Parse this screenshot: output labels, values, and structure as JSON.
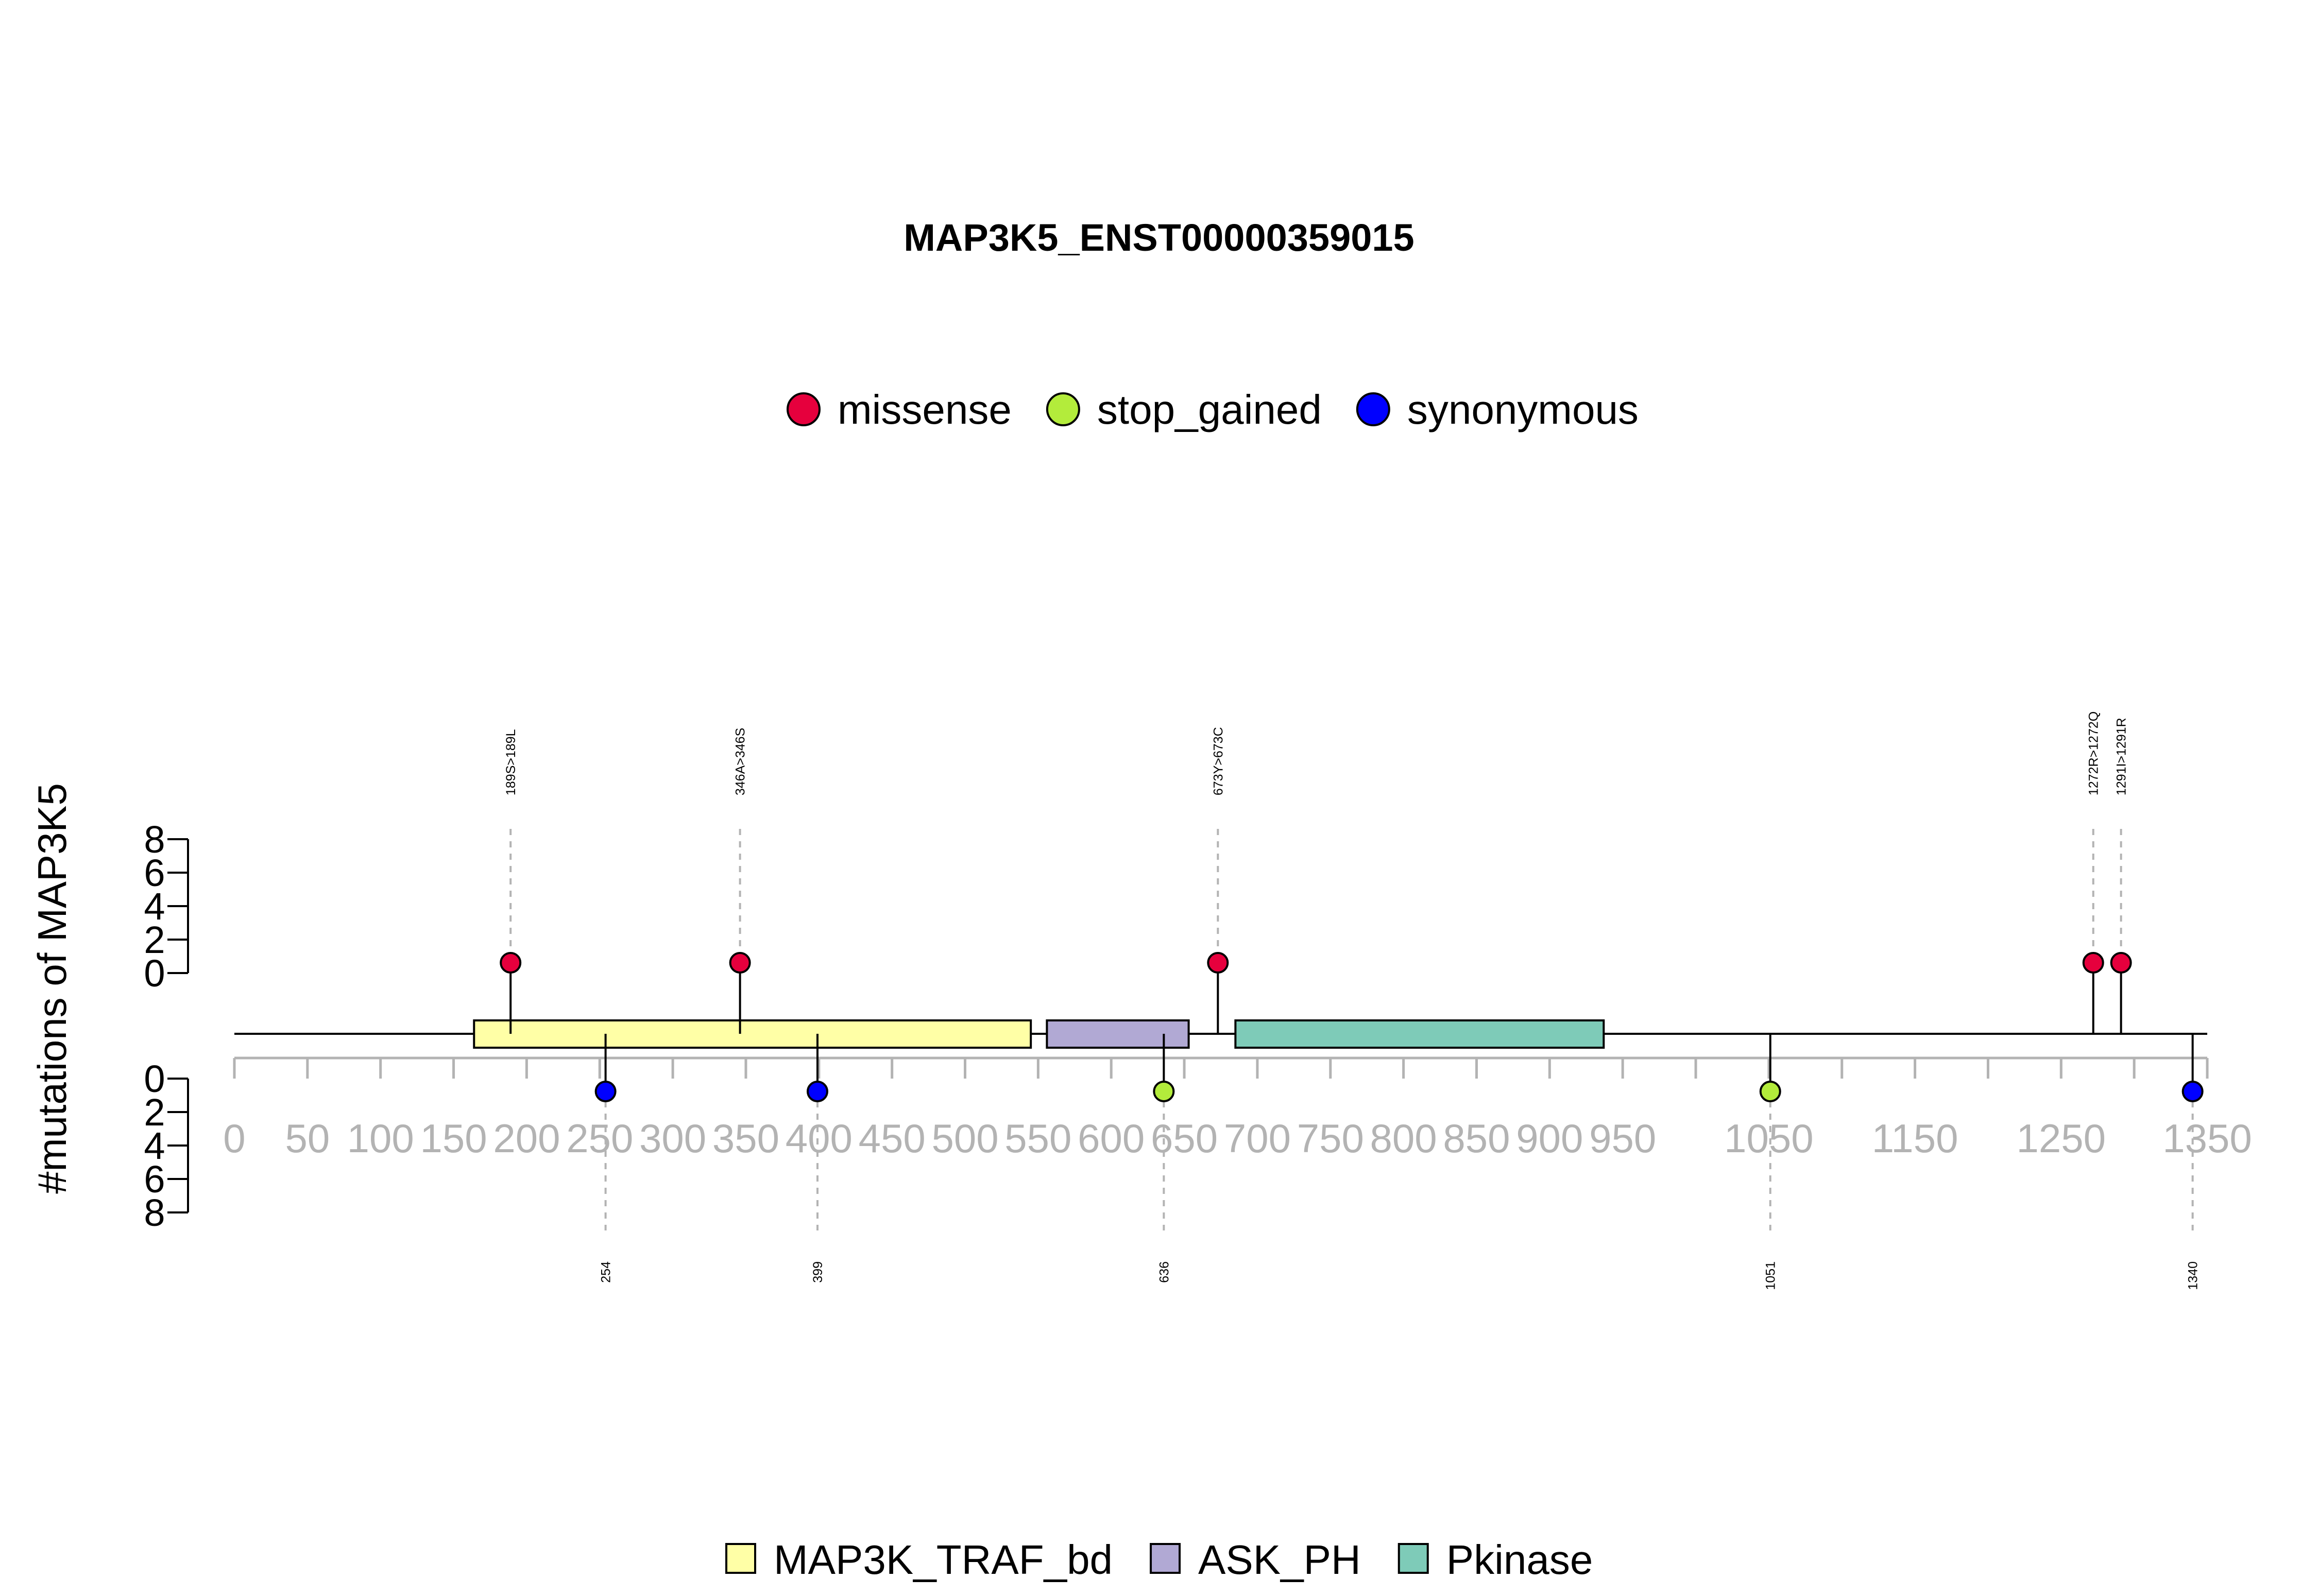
{
  "chart_data": {
    "type": "lollipop",
    "title": "MAP3K5_ENST00000359015",
    "ylabel": "#mutations of MAP3K5",
    "protein_length": 1350,
    "xlim": [
      0,
      1350
    ],
    "x_ticks": [
      0,
      50,
      100,
      150,
      200,
      250,
      300,
      350,
      400,
      450,
      500,
      550,
      600,
      650,
      700,
      750,
      800,
      850,
      900,
      950,
      1050,
      1150,
      1250,
      1350
    ],
    "y_ticks_top": [
      "8",
      "6",
      "4",
      "2",
      "0"
    ],
    "y_ticks_bottom": [
      "0",
      "2",
      "4",
      "6",
      "8"
    ],
    "mutation_types": [
      {
        "name": "missense",
        "color": "#e6003d"
      },
      {
        "name": "stop_gained",
        "color": "#b3ec3b"
      },
      {
        "name": "synonymous",
        "color": "#0000ff"
      }
    ],
    "domains": [
      {
        "name": "MAP3K_TRAF_bd",
        "start": 164,
        "end": 545,
        "color": "#ffffa6"
      },
      {
        "name": "ASK_PH",
        "start": 556,
        "end": 653,
        "color": "#b1a9d4"
      },
      {
        "name": "Pkinase",
        "start": 685,
        "end": 937,
        "color": "#7ecbb8"
      }
    ],
    "mutations_top": [
      {
        "position": 189,
        "count": 1,
        "type": "missense",
        "label": "189S>189L"
      },
      {
        "position": 346,
        "count": 1,
        "type": "missense",
        "label": "346A>346S"
      },
      {
        "position": 673,
        "count": 1,
        "type": "missense",
        "label": "673Y>673C"
      },
      {
        "position": 1272,
        "count": 1,
        "type": "missense",
        "label": "1272R>1272Q"
      },
      {
        "position": 1291,
        "count": 1,
        "type": "missense",
        "label": "1291I>1291R"
      }
    ],
    "mutations_bottom": [
      {
        "position": 254,
        "count": 1,
        "type": "synonymous",
        "label": "254"
      },
      {
        "position": 399,
        "count": 1,
        "type": "synonymous",
        "label": "399"
      },
      {
        "position": 636,
        "count": 1,
        "type": "stop_gained",
        "label": "636"
      },
      {
        "position": 1051,
        "count": 1,
        "type": "stop_gained",
        "label": "1051"
      },
      {
        "position": 1340,
        "count": 1,
        "type": "synonymous",
        "label": "1340"
      }
    ]
  }
}
